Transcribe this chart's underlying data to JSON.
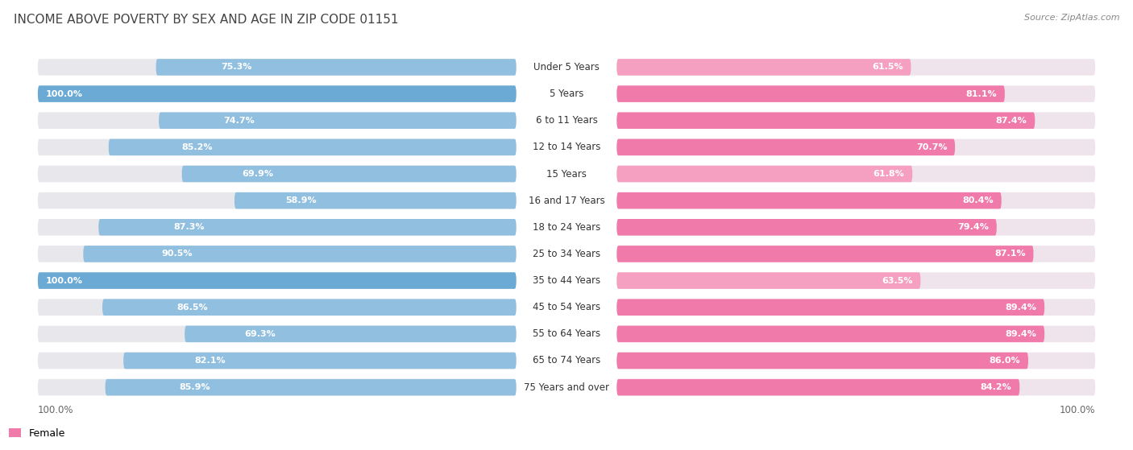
{
  "title": "INCOME ABOVE POVERTY BY SEX AND AGE IN ZIP CODE 01151",
  "source": "Source: ZipAtlas.com",
  "categories": [
    "Under 5 Years",
    "5 Years",
    "6 to 11 Years",
    "12 to 14 Years",
    "15 Years",
    "16 and 17 Years",
    "18 to 24 Years",
    "25 to 34 Years",
    "35 to 44 Years",
    "45 to 54 Years",
    "55 to 64 Years",
    "65 to 74 Years",
    "75 Years and over"
  ],
  "male_values": [
    75.3,
    100.0,
    74.7,
    85.2,
    69.9,
    58.9,
    87.3,
    90.5,
    100.0,
    86.5,
    69.3,
    82.1,
    85.9
  ],
  "female_values": [
    61.5,
    81.1,
    87.4,
    70.7,
    61.8,
    80.4,
    79.4,
    87.1,
    63.5,
    89.4,
    89.4,
    86.0,
    84.2
  ],
  "male_color": "#90bfe0",
  "male_color_100": "#6aaad4",
  "female_color": "#f07aaa",
  "female_color_light": "#f5a0c0",
  "female_color_100": "#f07aaa",
  "bg_color": "#ffffff",
  "bar_track_color": "#e8e8ec",
  "female_track_color": "#f0e4ec",
  "title_fontsize": 11,
  "source_fontsize": 8,
  "label_fontsize": 8.5,
  "value_fontsize": 8,
  "legend_fontsize": 9
}
